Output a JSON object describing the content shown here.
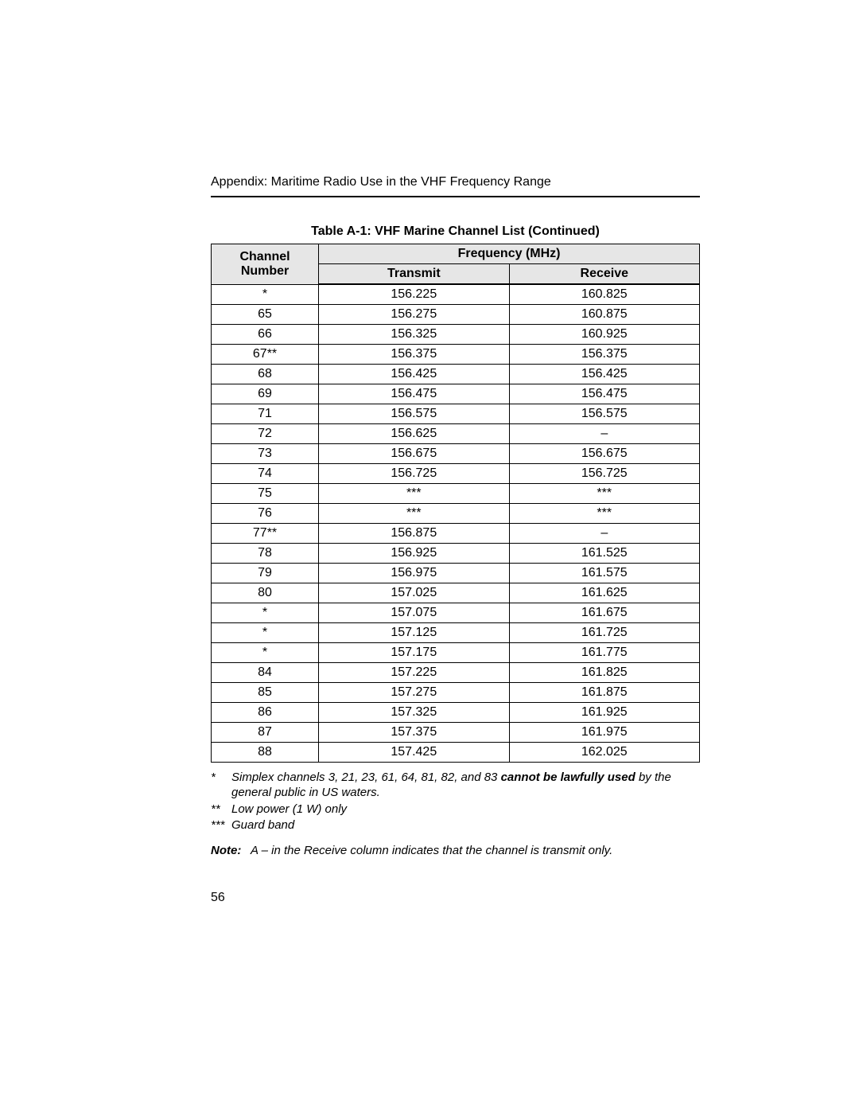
{
  "page": {
    "running_head": "Appendix: Maritime Radio Use in the VHF Frequency Range",
    "page_number": "56"
  },
  "table": {
    "type": "table",
    "caption": "Table A-1: VHF Marine Channel List (Continued)",
    "header": {
      "channel_line1": "Channel",
      "channel_line2": "Number",
      "frequency": "Frequency (MHz)",
      "transmit": "Transmit",
      "receive": "Receive"
    },
    "header_bg": "#e6e6e6",
    "border_color": "#000000",
    "font_size_pt": 12,
    "columns": [
      "Channel Number",
      "Transmit",
      "Receive"
    ],
    "col_widths_pct": [
      22,
      39,
      39
    ],
    "rows": [
      {
        "ch": "*",
        "tx": "156.225",
        "rx": "160.825"
      },
      {
        "ch": "65",
        "tx": "156.275",
        "rx": "160.875"
      },
      {
        "ch": "66",
        "tx": "156.325",
        "rx": "160.925"
      },
      {
        "ch": "67**",
        "tx": "156.375",
        "rx": "156.375"
      },
      {
        "ch": "68",
        "tx": "156.425",
        "rx": "156.425"
      },
      {
        "ch": "69",
        "tx": "156.475",
        "rx": "156.475"
      },
      {
        "ch": "71",
        "tx": "156.575",
        "rx": "156.575"
      },
      {
        "ch": "72",
        "tx": "156.625",
        "rx": "–"
      },
      {
        "ch": "73",
        "tx": "156.675",
        "rx": "156.675"
      },
      {
        "ch": "74",
        "tx": "156.725",
        "rx": "156.725"
      },
      {
        "ch": "75",
        "tx": "***",
        "rx": "***"
      },
      {
        "ch": "76",
        "tx": "***",
        "rx": "***"
      },
      {
        "ch": "77**",
        "tx": "156.875",
        "rx": "–"
      },
      {
        "ch": "78",
        "tx": "156.925",
        "rx": "161.525"
      },
      {
        "ch": "79",
        "tx": "156.975",
        "rx": "161.575"
      },
      {
        "ch": "80",
        "tx": "157.025",
        "rx": "161.625"
      },
      {
        "ch": "*",
        "tx": "157.075",
        "rx": "161.675"
      },
      {
        "ch": "*",
        "tx": "157.125",
        "rx": "161.725"
      },
      {
        "ch": "*",
        "tx": "157.175",
        "rx": "161.775"
      },
      {
        "ch": "84",
        "tx": "157.225",
        "rx": "161.825"
      },
      {
        "ch": "85",
        "tx": "157.275",
        "rx": "161.875"
      },
      {
        "ch": "86",
        "tx": "157.325",
        "rx": "161.925"
      },
      {
        "ch": "87",
        "tx": "157.375",
        "rx": "161.975"
      },
      {
        "ch": "88",
        "tx": "157.425",
        "rx": "162.025"
      }
    ]
  },
  "footnotes": [
    {
      "mark": "*",
      "html": "Simplex channels 3, 21, 23, 61, 64, 81, 82, and 83 <b>cannot be lawfully used</b> by the general public in US waters."
    },
    {
      "mark": "**",
      "html": "Low power (1 W) only"
    },
    {
      "mark": "***",
      "html": "Guard band"
    }
  ],
  "note": {
    "label": "Note:",
    "body": "A – in the Receive column indicates that the channel is transmit only."
  }
}
